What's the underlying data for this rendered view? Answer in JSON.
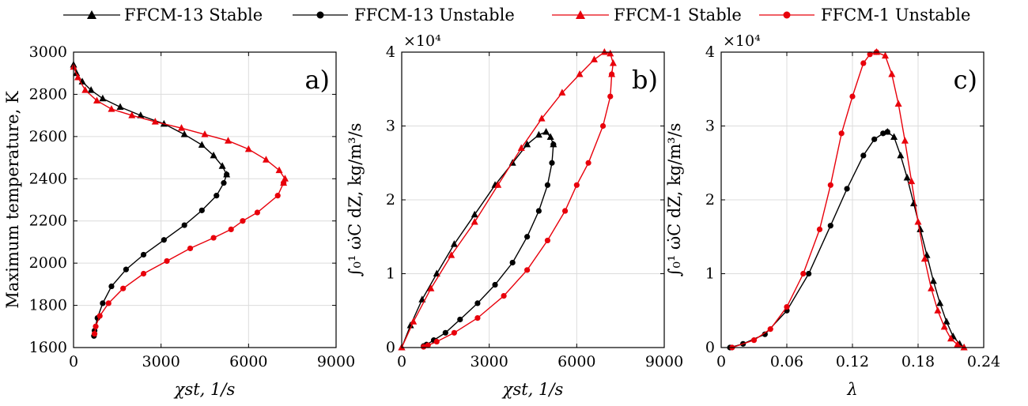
{
  "legend": [
    {
      "label": "FFCM-13 Stable",
      "color": "#000000",
      "marker": "triangle"
    },
    {
      "label": "FFCM-13 Unstable",
      "color": "#000000",
      "marker": "circle"
    },
    {
      "label": "FFCM-1 Stable",
      "color": "#e8000b",
      "marker": "triangle"
    },
    {
      "label": "FFCM-1 Unstable",
      "color": "#e8000b",
      "marker": "circle"
    }
  ],
  "chart_data": [
    {
      "type": "line",
      "panel_label": "a)",
      "xlabel": "χst, 1/s",
      "ylabel": "Maximum temperature, K",
      "xlim": [
        0,
        9000
      ],
      "ylim": [
        1600,
        3000
      ],
      "xticks": [
        0,
        3000,
        6000,
        9000
      ],
      "yticks": [
        1600,
        1800,
        2000,
        2200,
        2400,
        2600,
        2800,
        3000
      ],
      "exponent_label": "",
      "series": [
        {
          "name": "FFCM-13 Stable",
          "x": [
            0,
            100,
            300,
            600,
            1000,
            1600,
            2300,
            3100,
            3800,
            4400,
            4800,
            5100,
            5250
          ],
          "y": [
            2940,
            2900,
            2860,
            2820,
            2780,
            2740,
            2700,
            2660,
            2610,
            2560,
            2510,
            2460,
            2420
          ]
        },
        {
          "name": "FFCM-13 Unstable",
          "x": [
            5250,
            5150,
            4900,
            4400,
            3800,
            3100,
            2400,
            1800,
            1300,
            1000,
            820,
            720,
            700
          ],
          "y": [
            2420,
            2380,
            2320,
            2250,
            2180,
            2110,
            2040,
            1970,
            1890,
            1810,
            1740,
            1680,
            1655
          ]
        },
        {
          "name": "FFCM-1 Stable",
          "x": [
            0,
            150,
            400,
            800,
            1300,
            2000,
            2800,
            3700,
            4500,
            5300,
            6000,
            6600,
            7050,
            7250,
            7200
          ],
          "y": [
            2930,
            2880,
            2820,
            2770,
            2730,
            2700,
            2670,
            2640,
            2610,
            2580,
            2540,
            2490,
            2440,
            2400,
            2380
          ]
        },
        {
          "name": "FFCM-1 Unstable",
          "x": [
            7200,
            7000,
            6300,
            5800,
            5400,
            4800,
            4000,
            3200,
            2400,
            1700,
            1200,
            900,
            760,
            720
          ],
          "y": [
            2380,
            2320,
            2240,
            2200,
            2160,
            2120,
            2070,
            2010,
            1950,
            1880,
            1810,
            1750,
            1700,
            1665
          ]
        }
      ]
    },
    {
      "type": "line",
      "panel_label": "b)",
      "xlabel": "χst, 1/s",
      "ylabel": "∫₀¹ ω̇C dZ, kg/m³/s",
      "xlim": [
        0,
        9000
      ],
      "ylim": [
        0,
        4
      ],
      "xticks": [
        0,
        3000,
        6000,
        9000
      ],
      "yticks": [
        0,
        1,
        2,
        3,
        4
      ],
      "exponent_label": "×10⁴",
      "series": [
        {
          "name": "FFCM-13 Stable",
          "x": [
            0,
            300,
            700,
            1200,
            1800,
            2500,
            3200,
            3800,
            4300,
            4700,
            4950,
            5100,
            5200
          ],
          "y": [
            0,
            0.3,
            0.65,
            1.0,
            1.4,
            1.8,
            2.2,
            2.5,
            2.75,
            2.88,
            2.92,
            2.85,
            2.75
          ]
        },
        {
          "name": "FFCM-13 Unstable",
          "x": [
            5200,
            5150,
            5000,
            4700,
            4300,
            3800,
            3200,
            2600,
            2000,
            1500,
            1100,
            850,
            750
          ],
          "y": [
            2.75,
            2.5,
            2.2,
            1.85,
            1.5,
            1.15,
            0.85,
            0.6,
            0.38,
            0.2,
            0.1,
            0.04,
            0.02
          ]
        },
        {
          "name": "FFCM-1 Stable",
          "x": [
            0,
            400,
            1000,
            1700,
            2500,
            3300,
            4100,
            4800,
            5500,
            6100,
            6600,
            6950,
            7150,
            7250,
            7200
          ],
          "y": [
            0,
            0.35,
            0.8,
            1.25,
            1.7,
            2.2,
            2.7,
            3.1,
            3.45,
            3.7,
            3.9,
            4.0,
            3.98,
            3.85,
            3.7
          ]
        },
        {
          "name": "FFCM-1 Unstable",
          "x": [
            7200,
            7150,
            6900,
            6400,
            6000,
            5600,
            5000,
            4300,
            3500,
            2600,
            1800,
            1200,
            900,
            750
          ],
          "y": [
            3.7,
            3.4,
            3.0,
            2.5,
            2.2,
            1.85,
            1.45,
            1.05,
            0.7,
            0.4,
            0.2,
            0.08,
            0.03,
            0.01
          ]
        }
      ]
    },
    {
      "type": "line",
      "panel_label": "c)",
      "xlabel": "λ",
      "ylabel": "∫₀¹ ω̇C dZ, kg/m³/s",
      "xlim": [
        0,
        0.24
      ],
      "ylim": [
        0,
        4
      ],
      "xticks": [
        0,
        0.06,
        0.12,
        0.18,
        0.24
      ],
      "yticks": [
        0,
        1,
        2,
        3,
        4
      ],
      "exponent_label": "×10⁴",
      "series": [
        {
          "name": "FFCM-13 Stable",
          "x": [
            0.152,
            0.158,
            0.164,
            0.17,
            0.176,
            0.182,
            0.188,
            0.194,
            0.2,
            0.206,
            0.212,
            0.218,
            0.222
          ],
          "y": [
            2.92,
            2.85,
            2.6,
            2.3,
            1.95,
            1.6,
            1.25,
            0.9,
            0.6,
            0.35,
            0.15,
            0.05,
            0.0
          ]
        },
        {
          "name": "FFCM-13 Unstable",
          "x": [
            0.008,
            0.02,
            0.04,
            0.06,
            0.08,
            0.1,
            0.115,
            0.13,
            0.14,
            0.148,
            0.152
          ],
          "y": [
            0.0,
            0.05,
            0.18,
            0.5,
            1.0,
            1.65,
            2.15,
            2.6,
            2.82,
            2.9,
            2.92
          ]
        },
        {
          "name": "FFCM-1 Stable",
          "x": [
            0.142,
            0.15,
            0.156,
            0.162,
            0.168,
            0.174,
            0.18,
            0.186,
            0.192,
            0.198,
            0.204,
            0.21,
            0.216,
            0.222
          ],
          "y": [
            4.0,
            3.95,
            3.7,
            3.3,
            2.8,
            2.25,
            1.7,
            1.2,
            0.8,
            0.5,
            0.28,
            0.12,
            0.04,
            0.0
          ]
        },
        {
          "name": "FFCM-1 Unstable",
          "x": [
            0.01,
            0.03,
            0.045,
            0.06,
            0.075,
            0.09,
            0.1,
            0.11,
            0.12,
            0.13,
            0.136,
            0.142
          ],
          "y": [
            0.0,
            0.1,
            0.25,
            0.55,
            1.0,
            1.6,
            2.2,
            2.9,
            3.4,
            3.85,
            3.97,
            4.0
          ]
        }
      ]
    }
  ]
}
